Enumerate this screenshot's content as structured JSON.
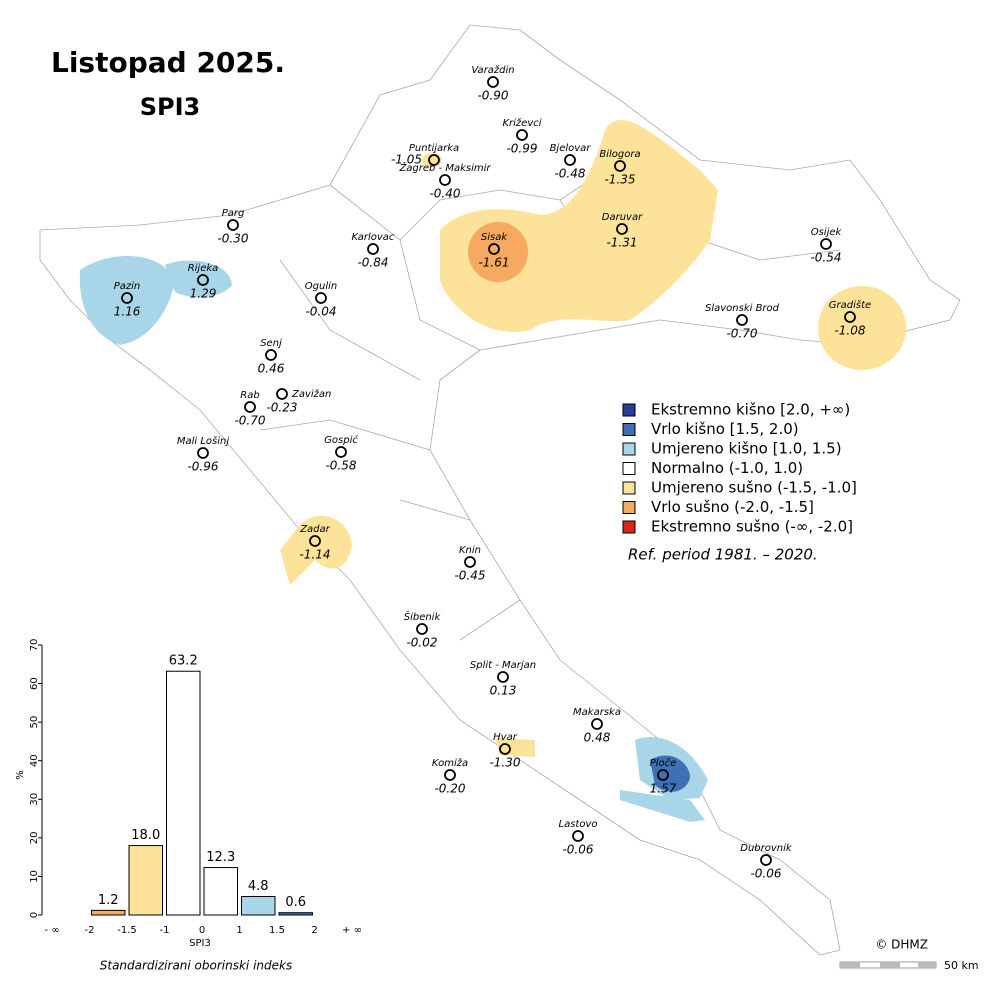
{
  "header": {
    "title": "Listopad 2025.",
    "subtitle": "SPI3"
  },
  "stations": [
    {
      "name": "Varaždin",
      "value": "-0.90"
    },
    {
      "name": "Križevci",
      "value": "-0.99"
    },
    {
      "name": "Puntijarka",
      "value": "-1.05"
    },
    {
      "name": "Bjelovar",
      "value": "-0.48"
    },
    {
      "name": "Bilogora",
      "value": "-1.35"
    },
    {
      "name": "Zagreb - Maksimir",
      "value": "-0.40"
    },
    {
      "name": "Parg",
      "value": "-0.30"
    },
    {
      "name": "Karlovac",
      "value": "-0.84"
    },
    {
      "name": "Sisak",
      "value": "-1.61"
    },
    {
      "name": "Daruvar",
      "value": "-1.31"
    },
    {
      "name": "Osijek",
      "value": "-0.54"
    },
    {
      "name": "Pazin",
      "value": "1.16"
    },
    {
      "name": "Rijeka",
      "value": "1.29"
    },
    {
      "name": "Ogulin",
      "value": "-0.04"
    },
    {
      "name": "Slavonski Brod",
      "value": "-0.70"
    },
    {
      "name": "Gradište",
      "value": "-1.08"
    },
    {
      "name": "Senj",
      "value": "0.46"
    },
    {
      "name": "Rab",
      "value": "-0.70"
    },
    {
      "name": "Zavižan",
      "value": "-0.23"
    },
    {
      "name": "Mali Lošinj",
      "value": "-0.96"
    },
    {
      "name": "Gospić",
      "value": "-0.58"
    },
    {
      "name": "Zadar",
      "value": "-1.14"
    },
    {
      "name": "Knin",
      "value": "-0.45"
    },
    {
      "name": "Šibenik",
      "value": "-0.02"
    },
    {
      "name": "Split - Marjan",
      "value": "0.13"
    },
    {
      "name": "Makarska",
      "value": "0.48"
    },
    {
      "name": "Hvar",
      "value": "-1.30"
    },
    {
      "name": "Ploče",
      "value": "1.57"
    },
    {
      "name": "Komiža",
      "value": "-0.20"
    },
    {
      "name": "Lastovo",
      "value": "-0.06"
    },
    {
      "name": "Dubrovnik",
      "value": "-0.06"
    }
  ],
  "legend": {
    "items": [
      {
        "label": "Ekstremno kišno [2.0, +∞)",
        "color": "#2b3a9b"
      },
      {
        "label": "Vrlo kišno [1.5, 2.0)",
        "color": "#3f6fb5"
      },
      {
        "label": "Umjereno kišno [1.0, 1.5)",
        "color": "#a9d5e8"
      },
      {
        "label": "Normalno (-1.0, 1.0)",
        "color": "#ffffff"
      },
      {
        "label": "Umjereno sušno (-1.5, -1.0]",
        "color": "#fde29a"
      },
      {
        "label": "Vrlo sušno (-2.0, -1.5]",
        "color": "#f6a95f"
      },
      {
        "label": "Ekstremno sušno (-∞, -2.0]",
        "color": "#d7261e"
      }
    ],
    "note": "Ref. period 1981. – 2020."
  },
  "chart_data": {
    "type": "histogram",
    "ylabel": "%",
    "xlabel": "SPI3",
    "caption": "Standardizirani oborinski indeks",
    "bins": [
      "- ∞",
      "-2",
      "-1.5",
      "-1",
      "0",
      "1",
      "1.5",
      "2",
      "+ ∞"
    ],
    "values": [
      0,
      1.2,
      18.0,
      63.2,
      12.3,
      4.8,
      0.6,
      0
    ],
    "value_labels": [
      null,
      "1.2",
      "18.0",
      "63.2",
      "12.3",
      "4.8",
      "0.6",
      null
    ],
    "colors": [
      "#d7261e",
      "#f6a95f",
      "#fde29a",
      "#ffffff",
      "#ffffff",
      "#a9d5e8",
      "#3f6fb5",
      "#2b3a9b"
    ],
    "ylim": [
      0,
      70
    ],
    "yticks": [
      0,
      10,
      20,
      30,
      40,
      50,
      60,
      70
    ]
  },
  "footer": {
    "copyright": "© DHMZ",
    "scale": "50 km"
  }
}
